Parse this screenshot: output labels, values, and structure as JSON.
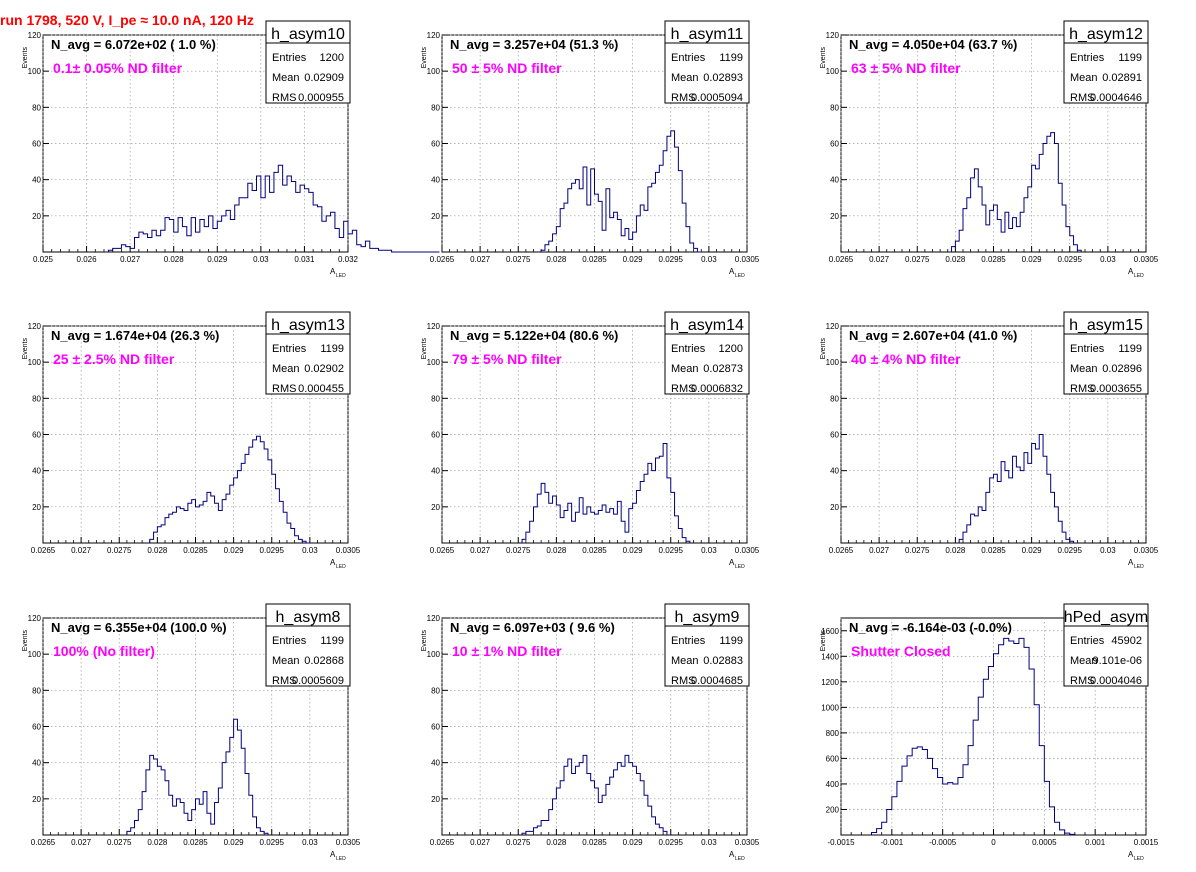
{
  "page": {
    "title": "run 1798,   520 V, I_pe ≈ 10.0 nA, 120 Hz",
    "title_color": "#ff0000",
    "histogram_color": "#000080",
    "annotation_color": "#ff00ff"
  },
  "chart_data": [
    {
      "type": "histogram",
      "name": "h_asym10",
      "stats": {
        "entries_label": "Entries",
        "entries": "1200",
        "mean_label": "Mean",
        "mean": "0.02909",
        "rms_label": "RMS",
        "rms": "0.000955"
      },
      "navg": "N_avg = 6.072e+02 ( 1.0 %)",
      "annotation": "0.1± 0.05% ND filter",
      "xlabel": "A",
      "xlabel_sub": "LED",
      "ylabel": "Events",
      "xlim": [
        0.025,
        0.032
      ],
      "ylim": [
        0,
        120
      ],
      "xticks": [
        "0.025",
        "0.026",
        "0.027",
        "0.028",
        "0.029",
        "0.03",
        "0.031",
        "0.032"
      ],
      "xtick_values": [
        0.025,
        0.026,
        0.027,
        0.028,
        0.029,
        0.03,
        0.031,
        0.032
      ],
      "yticks": [
        "20",
        "40",
        "60",
        "80",
        "100",
        "120"
      ],
      "ytick_values": [
        20,
        40,
        60,
        80,
        100,
        120
      ],
      "x_start": 0.0265,
      "bin_width": 0.0001,
      "values": [
        1,
        2,
        2,
        4,
        3,
        2,
        8,
        11,
        10,
        8,
        12,
        9,
        12,
        19,
        18,
        11,
        19,
        14,
        9,
        19,
        11,
        18,
        14,
        20,
        13,
        17,
        20,
        23,
        18,
        26,
        30,
        30,
        38,
        34,
        42,
        30,
        42,
        33,
        44,
        48,
        37,
        42,
        39,
        33,
        37,
        35,
        33,
        26,
        25,
        17,
        20,
        22,
        13,
        8,
        17,
        10,
        12,
        4,
        3,
        6,
        2,
        2,
        1,
        1,
        1,
        0,
        0,
        0,
        0,
        0,
        0,
        0,
        0,
        0,
        0,
        0
      ]
    },
    {
      "type": "histogram",
      "name": "h_asym11",
      "stats": {
        "entries_label": "Entries",
        "entries": "1199",
        "mean_label": "Mean",
        "mean": "0.02893",
        "rms_label": "RMS",
        "rms": "0.0005094"
      },
      "navg": "N_avg = 3.257e+04 (51.3 %)",
      "annotation": "50 ± 5% ND filter",
      "xlabel": "A",
      "xlabel_sub": "LED",
      "ylabel": "Events",
      "xlim": [
        0.0265,
        0.0305
      ],
      "ylim": [
        0,
        120
      ],
      "xticks": [
        "0.0265",
        "0.027",
        "0.0275",
        "0.028",
        "0.0285",
        "0.029",
        "0.0295",
        "0.03",
        "0.0305"
      ],
      "xtick_values": [
        0.0265,
        0.027,
        0.0275,
        0.028,
        0.0285,
        0.029,
        0.0295,
        0.03,
        0.0305
      ],
      "yticks": [
        "20",
        "40",
        "60",
        "80",
        "100",
        "120"
      ],
      "ytick_values": [
        20,
        40,
        60,
        80,
        100,
        120
      ],
      "x_start": 0.0278,
      "bin_width": 5e-05,
      "values": [
        1,
        4,
        6,
        10,
        14,
        24,
        27,
        35,
        38,
        40,
        35,
        47,
        26,
        46,
        32,
        28,
        12,
        35,
        19,
        22,
        18,
        9,
        13,
        7,
        11,
        20,
        26,
        23,
        36,
        38,
        44,
        48,
        56,
        64,
        67,
        58,
        45,
        27,
        14,
        5,
        2,
        0
      ]
    },
    {
      "type": "histogram",
      "name": "h_asym12",
      "stats": {
        "entries_label": "Entries",
        "entries": "1199",
        "mean_label": "Mean",
        "mean": "0.02891",
        "rms_label": "RMS",
        "rms": "0.0004646"
      },
      "navg": "N_avg = 4.050e+04 (63.7 %)",
      "annotation": "63 ± 5% ND filter",
      "xlabel": "A",
      "xlabel_sub": "LED",
      "ylabel": "Events",
      "xlim": [
        0.0265,
        0.0305
      ],
      "ylim": [
        0,
        120
      ],
      "xticks": [
        "0.0265",
        "0.027",
        "0.0275",
        "0.028",
        "0.0285",
        "0.029",
        "0.0295",
        "0.03",
        "0.0305"
      ],
      "xtick_values": [
        0.0265,
        0.027,
        0.0275,
        0.028,
        0.0285,
        0.029,
        0.0295,
        0.03,
        0.0305
      ],
      "yticks": [
        "20",
        "40",
        "60",
        "80",
        "100",
        "120"
      ],
      "ytick_values": [
        20,
        40,
        60,
        80,
        100,
        120
      ],
      "x_start": 0.02795,
      "bin_width": 5e-05,
      "values": [
        3,
        6,
        12,
        24,
        30,
        41,
        46,
        36,
        26,
        15,
        23,
        26,
        18,
        11,
        22,
        13,
        19,
        14,
        22,
        30,
        36,
        48,
        46,
        54,
        60,
        64,
        66,
        60,
        38,
        26,
        14,
        9,
        4,
        1
      ]
    },
    {
      "type": "histogram",
      "name": "h_asym13",
      "stats": {
        "entries_label": "Entries",
        "entries": "1199",
        "mean_label": "Mean",
        "mean": "0.02902",
        "rms_label": "RMS",
        "rms": "0.000455"
      },
      "navg": "N_avg = 1.674e+04 (26.3 %)",
      "annotation": "25 ± 2.5% ND filter",
      "xlabel": "A",
      "xlabel_sub": "LED",
      "ylabel": "Events",
      "xlim": [
        0.0265,
        0.0305
      ],
      "ylim": [
        0,
        120
      ],
      "xticks": [
        "0.0265",
        "0.027",
        "0.0275",
        "0.028",
        "0.0285",
        "0.029",
        "0.0295",
        "0.03",
        "0.0305"
      ],
      "xtick_values": [
        0.0265,
        0.027,
        0.0275,
        0.028,
        0.0285,
        0.029,
        0.0295,
        0.03,
        0.0305
      ],
      "yticks": [
        "20",
        "40",
        "60",
        "80",
        "100",
        "120"
      ],
      "ytick_values": [
        20,
        40,
        60,
        80,
        100,
        120
      ],
      "x_start": 0.0279,
      "bin_width": 5e-05,
      "values": [
        2,
        6,
        9,
        10,
        14,
        16,
        17,
        20,
        19,
        18,
        22,
        24,
        20,
        21,
        23,
        28,
        26,
        22,
        18,
        24,
        27,
        32,
        36,
        40,
        44,
        49,
        53,
        57,
        59,
        56,
        52,
        46,
        38,
        30,
        23,
        17,
        11,
        8,
        4,
        2,
        1,
        0
      ]
    },
    {
      "type": "histogram",
      "name": "h_asym14",
      "stats": {
        "entries_label": "Entries",
        "entries": "1200",
        "mean_label": "Mean",
        "mean": "0.02873",
        "rms_label": "RMS",
        "rms": "0.0006832"
      },
      "navg": "N_avg = 5.122e+04 (80.6 %)",
      "annotation": "79 ± 5% ND filter",
      "xlabel": "A",
      "xlabel_sub": "LED",
      "ylabel": "Events",
      "xlim": [
        0.0265,
        0.0305
      ],
      "ylim": [
        0,
        120
      ],
      "xticks": [
        "0.0265",
        "0.027",
        "0.0275",
        "0.028",
        "0.0285",
        "0.029",
        "0.0295",
        "0.03",
        "0.0305"
      ],
      "xtick_values": [
        0.0265,
        0.027,
        0.0275,
        0.028,
        0.0285,
        0.029,
        0.0295,
        0.03,
        0.0305
      ],
      "yticks": [
        "20",
        "40",
        "60",
        "80",
        "100",
        "120"
      ],
      "ytick_values": [
        20,
        40,
        60,
        80,
        100,
        120
      ],
      "x_start": 0.02755,
      "bin_width": 5e-05,
      "values": [
        2,
        6,
        12,
        20,
        27,
        33,
        28,
        22,
        26,
        21,
        14,
        18,
        22,
        12,
        17,
        25,
        16,
        20,
        17,
        16,
        18,
        21,
        17,
        19,
        16,
        23,
        12,
        6,
        19,
        22,
        29,
        34,
        38,
        44,
        40,
        47,
        48,
        55,
        36,
        28,
        15,
        8,
        3,
        1
      ]
    },
    {
      "type": "histogram",
      "name": "h_asym15",
      "stats": {
        "entries_label": "Entries",
        "entries": "1199",
        "mean_label": "Mean",
        "mean": "0.02896",
        "rms_label": "RMS",
        "rms": "0.0003655"
      },
      "navg": "N_avg = 2.607e+04 (41.0 %)",
      "annotation": "40 ± 4% ND filter",
      "xlabel": "A",
      "xlabel_sub": "LED",
      "ylabel": "Events",
      "xlim": [
        0.0265,
        0.0305
      ],
      "ylim": [
        0,
        120
      ],
      "xticks": [
        "0.0265",
        "0.027",
        "0.0275",
        "0.028",
        "0.0285",
        "0.029",
        "0.0295",
        "0.03",
        "0.0305"
      ],
      "xtick_values": [
        0.0265,
        0.027,
        0.0275,
        0.028,
        0.0285,
        0.029,
        0.0295,
        0.03,
        0.0305
      ],
      "yticks": [
        "20",
        "40",
        "60",
        "80",
        "100",
        "120"
      ],
      "ytick_values": [
        20,
        40,
        60,
        80,
        100,
        120
      ],
      "x_start": 0.02805,
      "bin_width": 5e-05,
      "values": [
        2,
        6,
        10,
        16,
        15,
        20,
        18,
        28,
        36,
        38,
        34,
        45,
        40,
        36,
        48,
        42,
        40,
        50,
        44,
        55,
        52,
        60,
        48,
        38,
        28,
        20,
        12,
        6,
        2,
        1
      ]
    },
    {
      "type": "histogram",
      "name": "h_asym8",
      "stats": {
        "entries_label": "Entries",
        "entries": "1199",
        "mean_label": "Mean",
        "mean": "0.02868",
        "rms_label": "RMS",
        "rms": "0.0005609"
      },
      "navg": "N_avg = 6.355e+04 (100.0 %)",
      "annotation": "100% (No filter)",
      "xlabel": "A",
      "xlabel_sub": "LED",
      "ylabel": "Events",
      "xlim": [
        0.0265,
        0.0305
      ],
      "ylim": [
        0,
        120
      ],
      "xticks": [
        "0.0265",
        "0.027",
        "0.0275",
        "0.028",
        "0.0285",
        "0.029",
        "0.0295",
        "0.03",
        "0.0305"
      ],
      "xtick_values": [
        0.0265,
        0.027,
        0.0275,
        0.028,
        0.0285,
        0.029,
        0.0295,
        0.03,
        0.0305
      ],
      "yticks": [
        "20",
        "40",
        "60",
        "80",
        "100",
        "120"
      ],
      "ytick_values": [
        20,
        40,
        60,
        80,
        100,
        120
      ],
      "x_start": 0.0276,
      "bin_width": 5e-05,
      "values": [
        2,
        4,
        8,
        14,
        24,
        36,
        44,
        42,
        38,
        36,
        30,
        22,
        16,
        20,
        18,
        12,
        8,
        14,
        20,
        17,
        24,
        12,
        6,
        18,
        26,
        40,
        46,
        54,
        64,
        58,
        48,
        34,
        22,
        10,
        4,
        2,
        1
      ]
    },
    {
      "type": "histogram",
      "name": "h_asym9",
      "stats": {
        "entries_label": "Entries",
        "entries": "1199",
        "mean_label": "Mean",
        "mean": "0.02883",
        "rms_label": "RMS",
        "rms": "0.0004685"
      },
      "navg": "N_avg = 6.097e+03 ( 9.6 %)",
      "annotation": "10 ± 1% ND filter",
      "xlabel": "A",
      "xlabel_sub": "LED",
      "ylabel": "Events",
      "xlim": [
        0.0265,
        0.0305
      ],
      "ylim": [
        0,
        120
      ],
      "xticks": [
        "0.0265",
        "0.027",
        "0.0275",
        "0.028",
        "0.0285",
        "0.029",
        "0.0295",
        "0.03",
        "0.0305"
      ],
      "xtick_values": [
        0.0265,
        0.027,
        0.0275,
        0.028,
        0.0285,
        0.029,
        0.0295,
        0.03,
        0.0305
      ],
      "yticks": [
        "20",
        "40",
        "60",
        "80",
        "100",
        "120"
      ],
      "ytick_values": [
        20,
        40,
        60,
        80,
        100,
        120
      ],
      "x_start": 0.02755,
      "bin_width": 5e-05,
      "values": [
        1,
        2,
        2,
        4,
        5,
        8,
        8,
        14,
        20,
        26,
        30,
        38,
        42,
        34,
        38,
        40,
        44,
        34,
        30,
        26,
        18,
        22,
        28,
        32,
        36,
        40,
        38,
        44,
        40,
        38,
        34,
        30,
        22,
        16,
        10,
        6,
        4,
        2
      ]
    },
    {
      "type": "histogram",
      "name": "hPed_asym",
      "stats": {
        "entries_label": "Entries",
        "entries": "45902",
        "mean_label": "Mean",
        "mean": "9.101e-06",
        "rms_label": "RMS",
        "rms": "0.0004046"
      },
      "navg": "N_avg = -6.164e-03 (-0.0%)",
      "annotation": "Shutter Closed",
      "xlabel": "A",
      "xlabel_sub": "LED",
      "ylabel": "Events",
      "xlim": [
        -0.0015,
        0.0015
      ],
      "ylim": [
        0,
        1700
      ],
      "xticks": [
        "-0.0015",
        "-0.001",
        "-0.0005",
        "0",
        "0.0005",
        "0.001",
        "0.0015"
      ],
      "xtick_values": [
        -0.0015,
        -0.001,
        -0.0005,
        0,
        0.0005,
        0.001,
        0.0015
      ],
      "yticks": [
        "200",
        "400",
        "600",
        "800",
        "1000",
        "1200",
        "1400",
        "1600"
      ],
      "ytick_values": [
        200,
        400,
        600,
        800,
        1000,
        1200,
        1400,
        1600
      ],
      "x_start": -0.0012,
      "bin_width": 5e-05,
      "values": [
        20,
        50,
        100,
        200,
        300,
        420,
        540,
        620,
        680,
        690,
        670,
        600,
        520,
        450,
        400,
        410,
        400,
        450,
        550,
        700,
        900,
        1080,
        1220,
        1320,
        1420,
        1490,
        1540,
        1520,
        1500,
        1540,
        1470,
        1300,
        1020,
        700,
        420,
        220,
        100,
        40,
        15,
        5
      ]
    }
  ]
}
